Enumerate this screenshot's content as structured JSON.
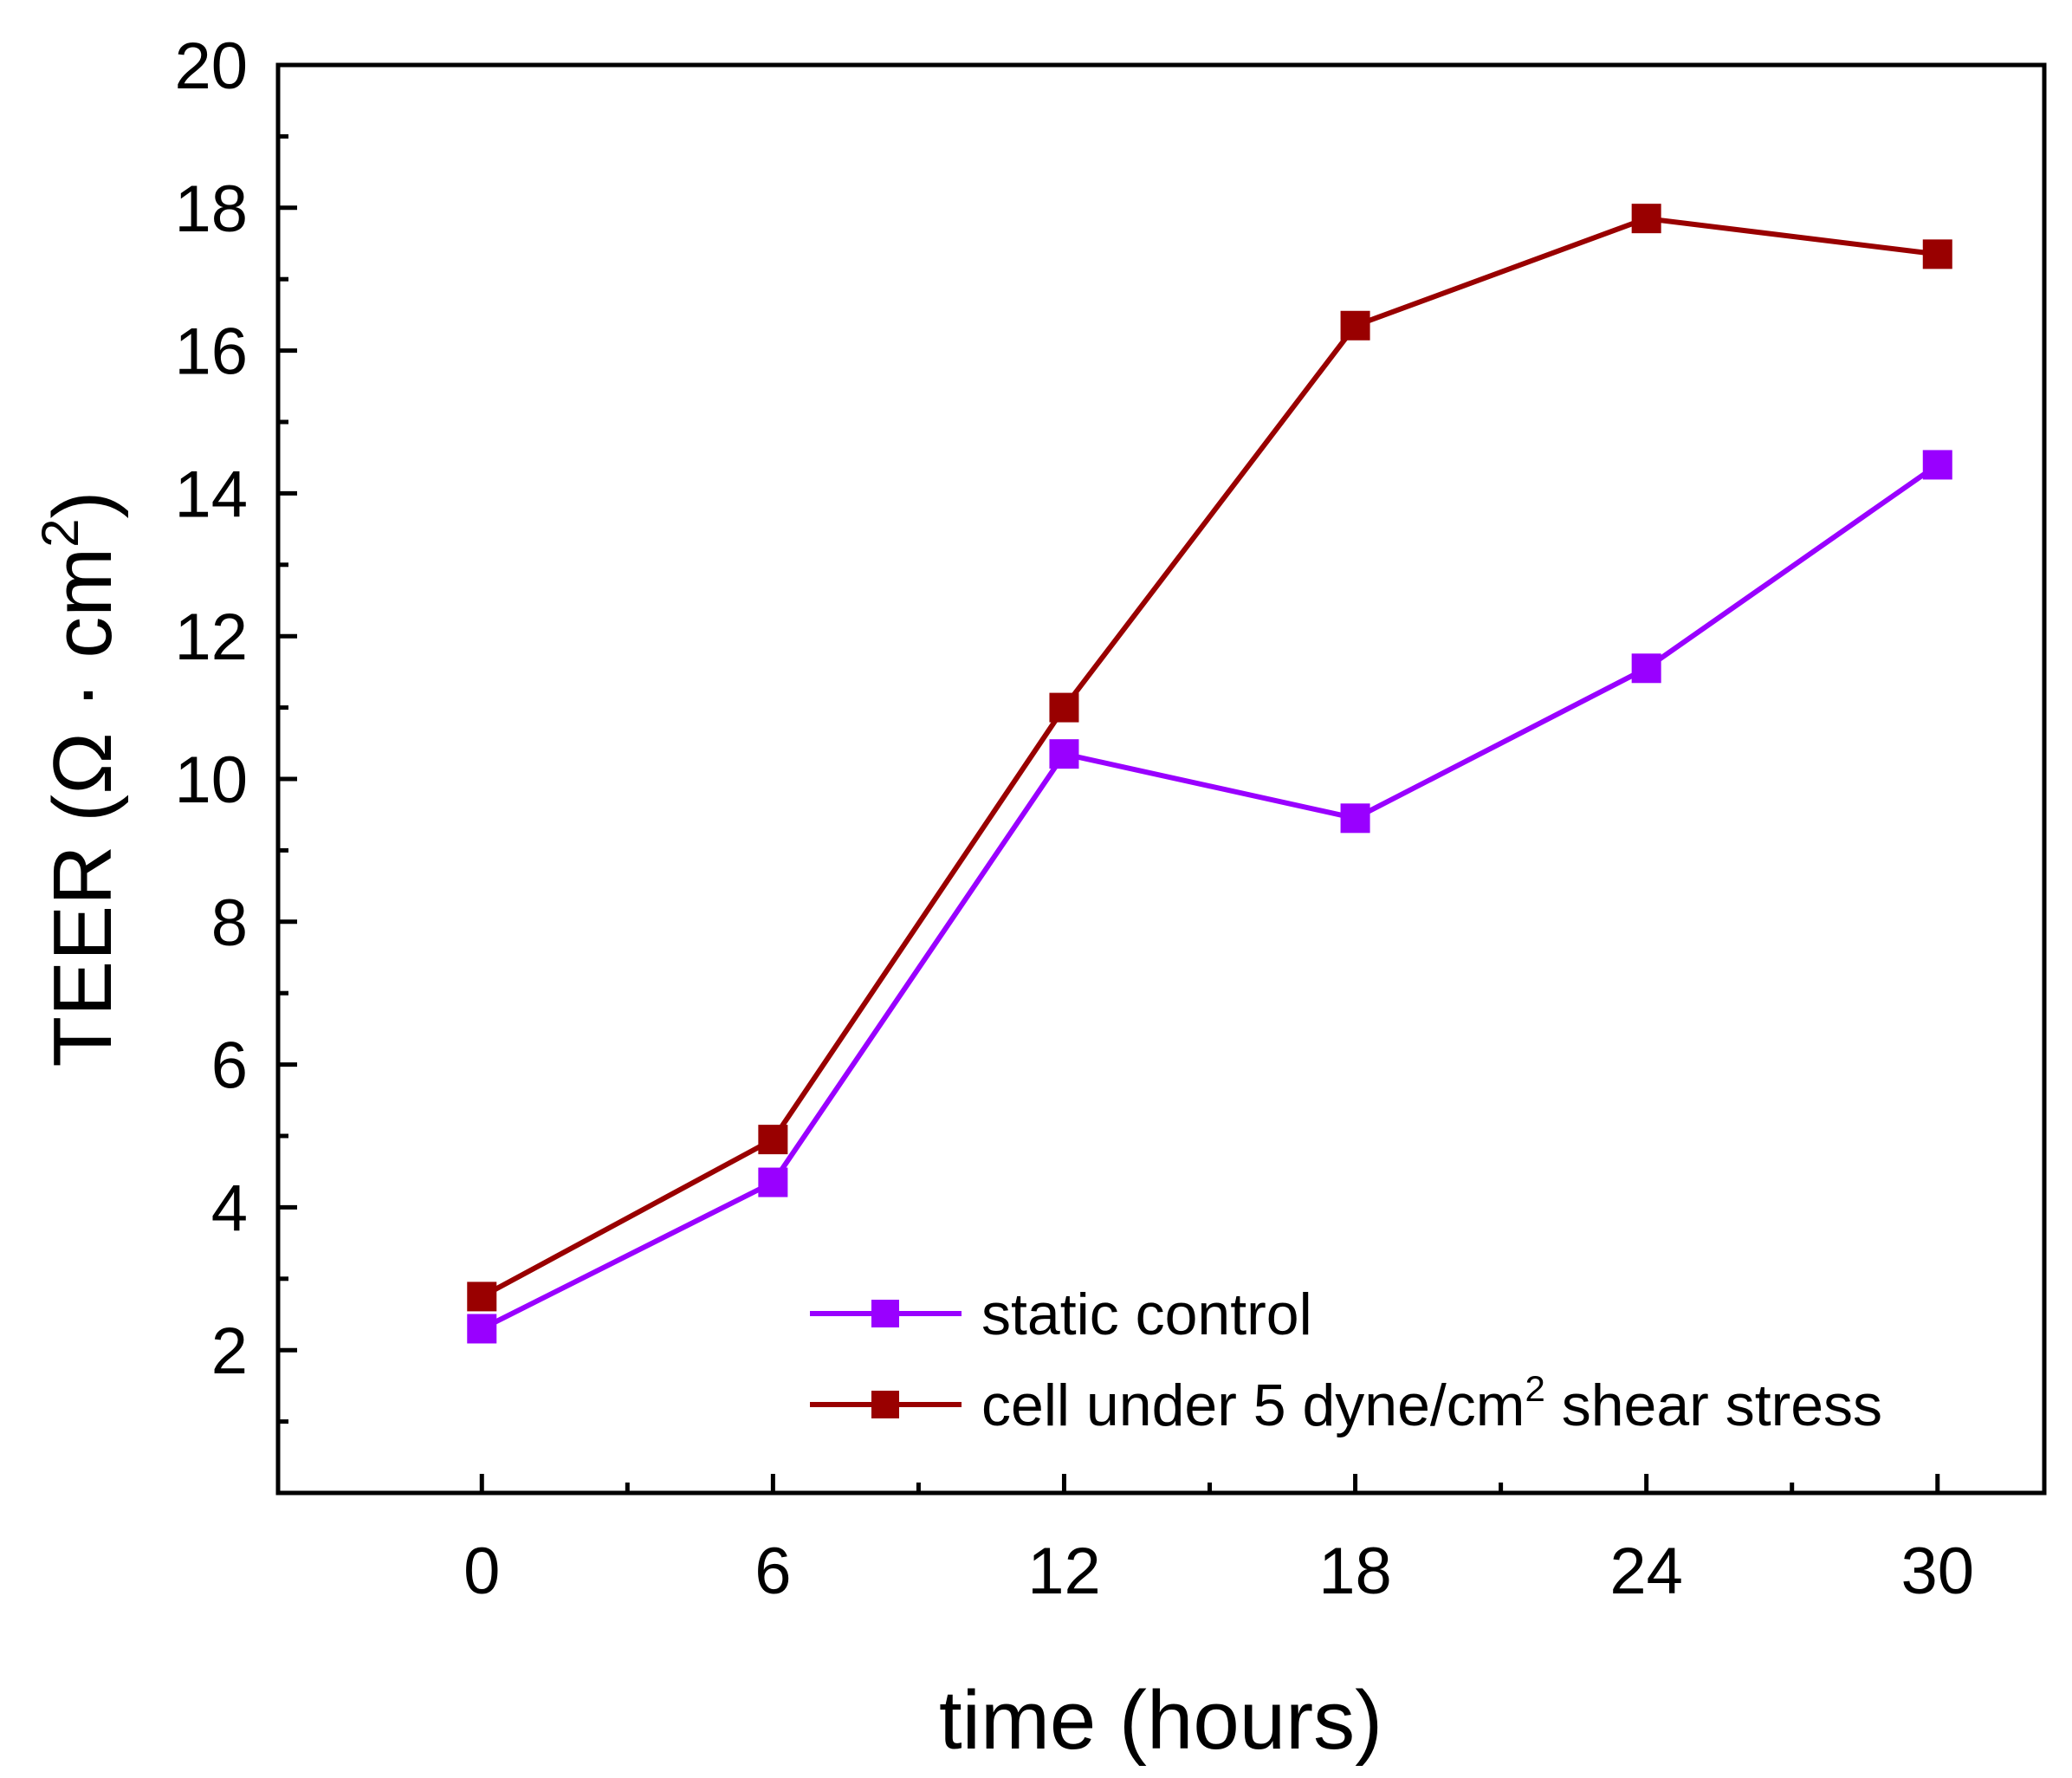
{
  "chart_data": {
    "type": "line",
    "title": "",
    "xlabel": "time (hours)",
    "ylabel": {
      "prefix": "TEER (Ω · cm",
      "superscript": "2",
      "suffix": ")"
    },
    "xlim": [
      -4.2,
      32.2
    ],
    "ylim": [
      0,
      20
    ],
    "x_major_ticks": [
      0,
      6,
      12,
      18,
      24,
      30
    ],
    "x_tick_labels": [
      "0",
      "6",
      "12",
      "18",
      "24",
      "30"
    ],
    "x_minor_ticks": [
      3,
      9,
      15,
      21,
      27
    ],
    "y_major_ticks": [
      2,
      4,
      6,
      8,
      10,
      12,
      14,
      16,
      18,
      20
    ],
    "y_tick_labels": [
      "2",
      "4",
      "6",
      "8",
      "10",
      "12",
      "14",
      "16",
      "18",
      "20"
    ],
    "y_minor_ticks": [
      1,
      3,
      5,
      7,
      9,
      11,
      13,
      15,
      17,
      19
    ],
    "x": [
      0,
      6,
      12,
      18,
      24,
      30
    ],
    "series": [
      {
        "name": "static control",
        "color": "#9900ff",
        "marker": "square",
        "values": [
          2.3,
          4.35,
          10.35,
          9.45,
          11.55,
          14.4
        ]
      },
      {
        "name": "cell under 5 dyne/cm2 shear stress",
        "legend_label": {
          "prefix": "cell under 5 dyne/cm",
          "superscript": "2",
          "suffix": " shear stress"
        },
        "color": "#990000",
        "marker": "square",
        "values": [
          2.75,
          4.95,
          11.0,
          16.35,
          17.85,
          17.35
        ]
      }
    ],
    "legend_position": "bottom-right",
    "grid": false
  }
}
